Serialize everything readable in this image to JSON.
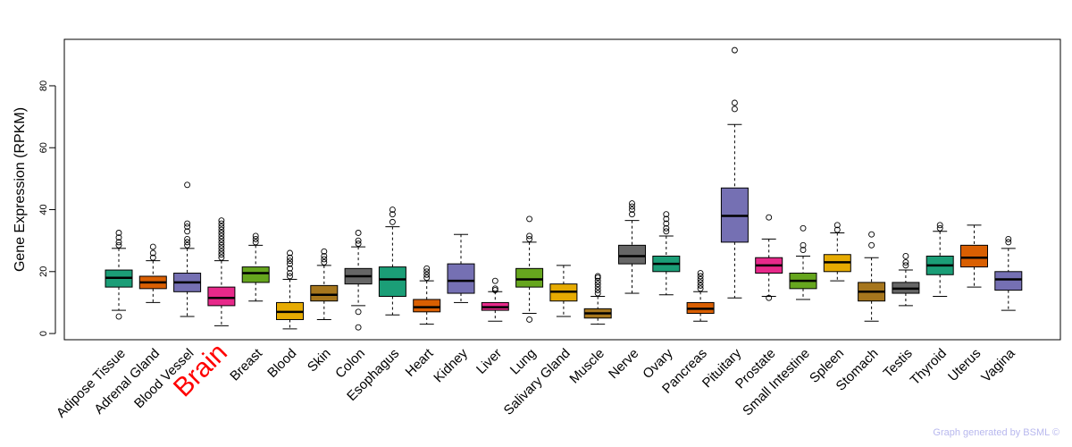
{
  "chart_data": {
    "type": "boxplot",
    "title": "",
    "xlabel": "",
    "ylabel": "Gene Expression (RPKM)",
    "ylim": [
      -2,
      95
    ],
    "yticks": [
      0,
      20,
      40,
      60,
      80
    ],
    "highlight": "Brain",
    "highlight_color": "#ff0000",
    "categories": [
      {
        "name": "Adipose Tissue",
        "color": "#1b9e77",
        "min": 7.5,
        "q1": 15.0,
        "median": 18.0,
        "q3": 20.5,
        "max": 27.5,
        "outliers": [
          5.5,
          28.5,
          29.5,
          31,
          32.5
        ]
      },
      {
        "name": "Adrenal Gland",
        "color": "#d95f02",
        "min": 10,
        "q1": 14.5,
        "median": 16.5,
        "q3": 18.5,
        "max": 23.5,
        "outliers": [
          24.5,
          26,
          28
        ]
      },
      {
        "name": "Blood Vessel",
        "color": "#7570b3",
        "min": 5.5,
        "q1": 13.5,
        "median": 16.5,
        "q3": 19.5,
        "max": 27.5,
        "outliers": [
          28.5,
          29.5,
          30.5,
          33,
          34.5,
          35.5,
          48
        ]
      },
      {
        "name": "Brain",
        "color": "#e7298a",
        "min": 2.5,
        "q1": 9.0,
        "median": 11.5,
        "q3": 15.0,
        "max": 23.5,
        "outliers": [
          24.5,
          25.5,
          26.5,
          27.5,
          28.5,
          29.5,
          30.5,
          31.5,
          32.5,
          33.5,
          34.5,
          35.5,
          36.5
        ]
      },
      {
        "name": "Breast",
        "color": "#66a61e",
        "min": 10.5,
        "q1": 16.5,
        "median": 19.5,
        "q3": 21.5,
        "max": 28.5,
        "outliers": [
          29.5,
          30.5,
          31.5
        ]
      },
      {
        "name": "Blood",
        "color": "#e6ab02",
        "min": 1.5,
        "q1": 4.5,
        "median": 7.0,
        "q3": 10.0,
        "max": 17.5,
        "outliers": [
          18.5,
          19.5,
          21,
          22.5,
          23.5,
          24.5,
          26
        ]
      },
      {
        "name": "Skin",
        "color": "#a6761d",
        "min": 4.5,
        "q1": 10.5,
        "median": 12.5,
        "q3": 15.5,
        "max": 22,
        "outliers": [
          23,
          24,
          25,
          26.5
        ]
      },
      {
        "name": "Colon",
        "color": "#666666",
        "min": 9,
        "q1": 16.0,
        "median": 18.5,
        "q3": 21.0,
        "max": 28,
        "outliers": [
          2,
          7,
          29,
          30,
          32.5
        ]
      },
      {
        "name": "Esophagus",
        "color": "#1b9e77",
        "min": 6,
        "q1": 12.0,
        "median": 17.5,
        "q3": 21.5,
        "max": 34.5,
        "outliers": [
          36,
          38.5,
          40
        ]
      },
      {
        "name": "Heart",
        "color": "#d95f02",
        "min": 3,
        "q1": 7.0,
        "median": 8.5,
        "q3": 11.0,
        "max": 17,
        "outliers": [
          18,
          19,
          20,
          21
        ]
      },
      {
        "name": "Kidney",
        "color": "#7570b3",
        "min": 10,
        "q1": 13.0,
        "median": 17.0,
        "q3": 22.5,
        "max": 32,
        "outliers": []
      },
      {
        "name": "Liver",
        "color": "#e7298a",
        "min": 4,
        "q1": 7.5,
        "median": 8.5,
        "q3": 10.0,
        "max": 13.5,
        "outliers": [
          14,
          14.5,
          17
        ]
      },
      {
        "name": "Lung",
        "color": "#66a61e",
        "min": 6.5,
        "q1": 15.0,
        "median": 17.5,
        "q3": 21.0,
        "max": 29.5,
        "outliers": [
          4.5,
          30.5,
          31.5,
          37
        ]
      },
      {
        "name": "Salivary Gland",
        "color": "#e6ab02",
        "min": 5.5,
        "q1": 10.5,
        "median": 13.5,
        "q3": 16.0,
        "max": 22,
        "outliers": []
      },
      {
        "name": "Muscle",
        "color": "#a6761d",
        "min": 3,
        "q1": 5.0,
        "median": 6.5,
        "q3": 8.0,
        "max": 12,
        "outliers": [
          13,
          14,
          15,
          16,
          17,
          18,
          18.5
        ]
      },
      {
        "name": "Nerve",
        "color": "#666666",
        "min": 13,
        "q1": 22.5,
        "median": 25.0,
        "q3": 28.5,
        "max": 36.5,
        "outliers": [
          38.5,
          40,
          41,
          42
        ]
      },
      {
        "name": "Ovary",
        "color": "#1b9e77",
        "min": 12.5,
        "q1": 20.0,
        "median": 22.5,
        "q3": 25.0,
        "max": 31.5,
        "outliers": [
          33,
          34,
          35.5,
          37,
          38.5
        ]
      },
      {
        "name": "Pancreas",
        "color": "#d95f02",
        "min": 4,
        "q1": 6.5,
        "median": 8.0,
        "q3": 10.0,
        "max": 13.5,
        "outliers": [
          14.5,
          15.5,
          16.5,
          17.5,
          18.5,
          19.5
        ]
      },
      {
        "name": "Pituitary",
        "color": "#7570b3",
        "min": 11.5,
        "q1": 29.5,
        "median": 38.0,
        "q3": 47.0,
        "max": 67.5,
        "outliers": [
          72.5,
          74.5,
          91.5
        ]
      },
      {
        "name": "Prostate",
        "color": "#e7298a",
        "min": 12,
        "q1": 19.5,
        "median": 22.0,
        "q3": 24.5,
        "max": 30.5,
        "outliers": [
          11.5,
          37.5
        ]
      },
      {
        "name": "Small Intestine",
        "color": "#66a61e",
        "min": 11,
        "q1": 14.5,
        "median": 17.0,
        "q3": 19.5,
        "max": 25,
        "outliers": [
          27,
          28.5,
          34
        ]
      },
      {
        "name": "Spleen",
        "color": "#e6ab02",
        "min": 17,
        "q1": 20.0,
        "median": 23.0,
        "q3": 25.5,
        "max": 32.5,
        "outliers": [
          33.5,
          35
        ]
      },
      {
        "name": "Stomach",
        "color": "#a6761d",
        "min": 4,
        "q1": 10.5,
        "median": 13.5,
        "q3": 16.5,
        "max": 24.5,
        "outliers": [
          28.5,
          32
        ]
      },
      {
        "name": "Testis",
        "color": "#666666",
        "min": 9,
        "q1": 13.0,
        "median": 14.5,
        "q3": 16.5,
        "max": 20.5,
        "outliers": [
          22,
          23,
          25
        ]
      },
      {
        "name": "Thyroid",
        "color": "#1b9e77",
        "min": 12,
        "q1": 19.0,
        "median": 22.0,
        "q3": 25.0,
        "max": 33,
        "outliers": [
          34,
          35
        ]
      },
      {
        "name": "Uterus",
        "color": "#d95f02",
        "min": 15,
        "q1": 21.5,
        "median": 24.5,
        "q3": 28.5,
        "max": 35,
        "outliers": []
      },
      {
        "name": "Vagina",
        "color": "#7570b3",
        "min": 7.5,
        "q1": 14.0,
        "median": 17.5,
        "q3": 20.0,
        "max": 27.5,
        "outliers": [
          29.5,
          30.5
        ]
      }
    ]
  },
  "footer": {
    "credit": "Graph generated by BSML ©"
  }
}
